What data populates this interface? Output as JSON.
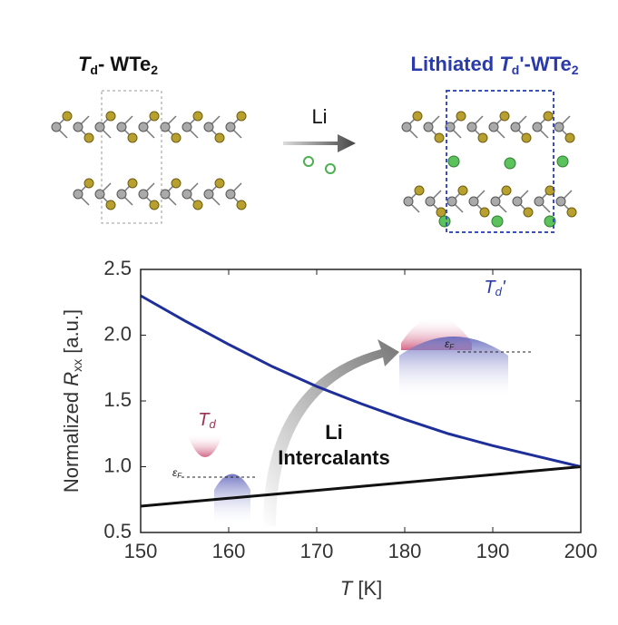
{
  "schematic": {
    "left_label": {
      "t": "T",
      "sub": "d",
      "rest": "- WTe",
      "sub2": "2"
    },
    "arrow_label": "Li",
    "right_label": {
      "pre": "Lithiated ",
      "t": "T",
      "sub": "d",
      "prime": "'",
      "rest": "-WTe",
      "sub2": "2"
    }
  },
  "chart_data": {
    "type": "line",
    "x_label": {
      "t": "T",
      "rest": " [K]"
    },
    "y_label": {
      "pre": "Normalized ",
      "r": "R",
      "sub": "xx",
      "rest": " [a.u.]"
    },
    "x": [
      150,
      155,
      160,
      165,
      170,
      175,
      180,
      185,
      190,
      195,
      200
    ],
    "series": [
      {
        "color": "#1f2f9a",
        "values": [
          2.3,
          2.11,
          1.93,
          1.76,
          1.61,
          1.48,
          1.36,
          1.25,
          1.16,
          1.08,
          1.0
        ]
      },
      {
        "color": "#111111",
        "values": [
          0.7,
          0.73,
          0.76,
          0.79,
          0.82,
          0.85,
          0.88,
          0.91,
          0.94,
          0.97,
          1.0
        ]
      }
    ],
    "xlim": [
      150,
      200
    ],
    "xticks": [
      150,
      160,
      170,
      180,
      190,
      200
    ],
    "ylim": [
      0.5,
      2.5
    ],
    "yticks": [
      0.5,
      {
        "value": 1.0,
        "label": "1.0"
      },
      1.5,
      {
        "value": 2.0,
        "label": "2.0"
      },
      2.5
    ],
    "annotations": {
      "li": "Li",
      "intercalants": "Intercalants",
      "td": {
        "t": "T",
        "sub": "d"
      },
      "td_prime": {
        "t": "T",
        "sub": "d",
        "prime": "'"
      },
      "ef_left": {
        "e": "ε",
        "sub": "F"
      },
      "ef_right": {
        "e": "ε",
        "sub": "F"
      }
    }
  }
}
